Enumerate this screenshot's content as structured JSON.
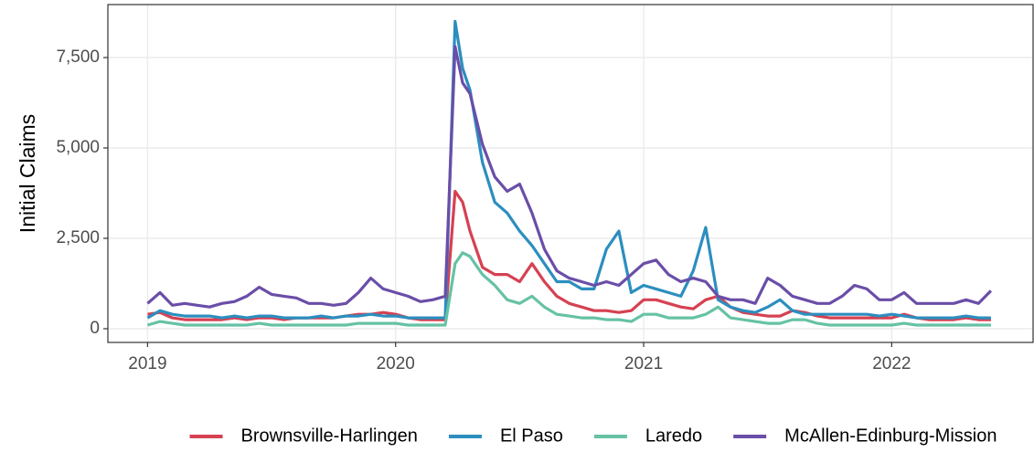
{
  "chart_data": {
    "type": "line",
    "ylabel": "Initial Claims",
    "x": [
      2019.0,
      2019.05,
      2019.1,
      2019.15,
      2019.2,
      2019.25,
      2019.3,
      2019.35,
      2019.4,
      2019.45,
      2019.5,
      2019.55,
      2019.6,
      2019.65,
      2019.7,
      2019.75,
      2019.8,
      2019.85,
      2019.9,
      2019.95,
      2020.0,
      2020.05,
      2020.1,
      2020.15,
      2020.2,
      2020.24,
      2020.27,
      2020.3,
      2020.35,
      2020.4,
      2020.45,
      2020.5,
      2020.55,
      2020.6,
      2020.65,
      2020.7,
      2020.75,
      2020.8,
      2020.85,
      2020.9,
      2020.95,
      2021.0,
      2021.05,
      2021.1,
      2021.15,
      2021.2,
      2021.25,
      2021.3,
      2021.35,
      2021.4,
      2021.45,
      2021.5,
      2021.55,
      2021.6,
      2021.65,
      2021.7,
      2021.75,
      2021.8,
      2021.85,
      2021.9,
      2021.95,
      2022.0,
      2022.05,
      2022.1,
      2022.15,
      2022.2,
      2022.25,
      2022.3,
      2022.35,
      2022.4
    ],
    "series": [
      {
        "name": "Brownsville-Harlingen",
        "color": "#d64152",
        "values": [
          400,
          450,
          300,
          250,
          250,
          250,
          250,
          300,
          250,
          300,
          300,
          250,
          300,
          300,
          300,
          300,
          350,
          400,
          400,
          450,
          400,
          300,
          250,
          250,
          250,
          3800,
          3500,
          2700,
          1700,
          1500,
          1500,
          1300,
          1800,
          1300,
          900,
          700,
          600,
          500,
          500,
          450,
          500,
          800,
          800,
          700,
          600,
          550,
          800,
          900,
          600,
          450,
          400,
          350,
          350,
          500,
          450,
          350,
          300,
          300,
          300,
          300,
          300,
          300,
          400,
          300,
          250,
          250,
          250,
          300,
          250,
          250
        ]
      },
      {
        "name": "El Paso",
        "color": "#2c8ebf",
        "values": [
          300,
          500,
          400,
          350,
          350,
          350,
          300,
          350,
          300,
          350,
          350,
          300,
          300,
          300,
          350,
          300,
          350,
          350,
          400,
          350,
          350,
          300,
          300,
          300,
          300,
          8500,
          7200,
          6600,
          4600,
          3500,
          3200,
          2700,
          2300,
          1800,
          1300,
          1300,
          1100,
          1100,
          2200,
          2700,
          1000,
          1200,
          1100,
          1000,
          900,
          1600,
          2800,
          800,
          600,
          500,
          450,
          600,
          800,
          500,
          400,
          400,
          400,
          400,
          400,
          400,
          350,
          400,
          350,
          300,
          300,
          300,
          300,
          350,
          300,
          300
        ]
      },
      {
        "name": "Laredo",
        "color": "#66c2a5",
        "values": [
          100,
          200,
          150,
          100,
          100,
          100,
          100,
          100,
          100,
          150,
          100,
          100,
          100,
          100,
          100,
          100,
          100,
          150,
          150,
          150,
          150,
          100,
          100,
          100,
          100,
          1800,
          2100,
          2000,
          1500,
          1200,
          800,
          700,
          900,
          600,
          400,
          350,
          300,
          300,
          250,
          250,
          200,
          400,
          400,
          300,
          300,
          300,
          400,
          600,
          300,
          250,
          200,
          150,
          150,
          250,
          250,
          150,
          100,
          100,
          100,
          100,
          100,
          100,
          150,
          100,
          100,
          100,
          100,
          100,
          100,
          100
        ]
      },
      {
        "name": "McAllen-Edinburg-Mission",
        "color": "#6a4ea8",
        "values": [
          700,
          1000,
          650,
          700,
          650,
          600,
          700,
          750,
          900,
          1150,
          950,
          900,
          850,
          700,
          700,
          650,
          700,
          1000,
          1400,
          1100,
          1000,
          900,
          750,
          800,
          900,
          7800,
          6800,
          6500,
          5100,
          4200,
          3800,
          4000,
          3200,
          2200,
          1600,
          1400,
          1300,
          1200,
          1300,
          1200,
          1500,
          1800,
          1900,
          1500,
          1300,
          1400,
          1300,
          900,
          800,
          800,
          700,
          1400,
          1200,
          900,
          800,
          700,
          700,
          900,
          1200,
          1100,
          800,
          800,
          1000,
          700,
          700,
          700,
          700,
          800,
          700,
          1050
        ]
      }
    ],
    "xlim": [
      2018.84,
      2022.57
    ],
    "xticks": [
      2019,
      2020,
      2021,
      2022
    ],
    "ylim": [
      -379,
      8965
    ],
    "yticks": [
      0,
      {
        "value": 2500,
        "label": "2,500"
      },
      {
        "value": 5000,
        "label": "5,000"
      },
      {
        "value": 7500,
        "label": "7,500"
      }
    ],
    "grid": true,
    "legend": "bottom"
  }
}
